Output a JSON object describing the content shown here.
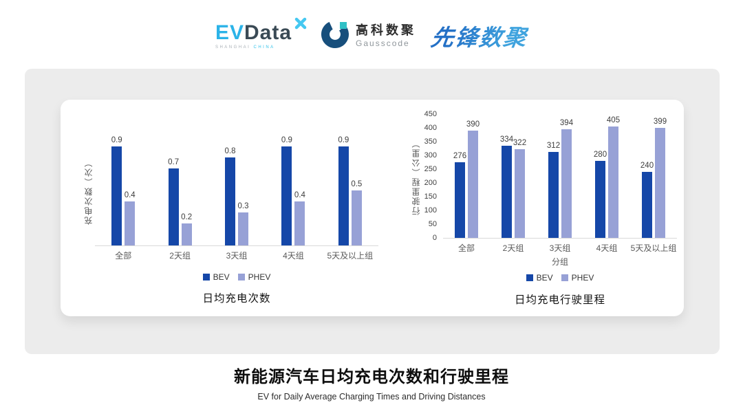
{
  "header": {
    "evdata": {
      "ev": "EV",
      "data": "Data",
      "sub_left": "SHANGHAI",
      "sub_right": "CHINA"
    },
    "gausscode": {
      "cn": "高科数聚",
      "en": "Gausscode"
    },
    "pioneer": {
      "text": "先锋数聚"
    }
  },
  "colors": {
    "bev": "#1547a8",
    "phev": "#97a1d6",
    "axis_line": "#d9d9d9",
    "panel_bg": "#ececec",
    "evdata_blue": "#2bb3e8",
    "evdata_dark": "#3a4a55",
    "gauss_navy": "#174f7c",
    "gauss_teal": "#2fc0c6",
    "pioneer_blue": "#2e86d1"
  },
  "chart_data": [
    {
      "type": "bar",
      "title": "日均充电次数",
      "categories": [
        "全部",
        "2天组",
        "3天组",
        "4天组",
        "5天及以上组"
      ],
      "series": [
        {
          "name": "BEV",
          "color": "#1547a8",
          "values": [
            0.9,
            0.7,
            0.8,
            0.9,
            0.9
          ]
        },
        {
          "name": "PHEV",
          "color": "#97a1d6",
          "values": [
            0.4,
            0.2,
            0.3,
            0.4,
            0.5
          ]
        }
      ],
      "xlabel": "",
      "ylabel": "充电次数（次）",
      "ylim": [
        0,
        1.0
      ],
      "y_ticks": [],
      "grid": false,
      "legend": [
        "BEV",
        "PHEV"
      ],
      "legend_position": "bottom",
      "data_labels": true
    },
    {
      "type": "bar",
      "title": "日均充电行驶里程",
      "categories": [
        "全部",
        "2天组",
        "3天组",
        "4天组",
        "5天及以上组"
      ],
      "series": [
        {
          "name": "BEV",
          "color": "#1547a8",
          "values": [
            276,
            334,
            312,
            280,
            240
          ]
        },
        {
          "name": "PHEV",
          "color": "#97a1d6",
          "values": [
            390,
            322,
            394,
            405,
            399
          ]
        }
      ],
      "xlabel": "分组",
      "ylabel": "行驶里程（公里）",
      "ylim": [
        0,
        450
      ],
      "y_ticks": [
        450,
        400,
        350,
        300,
        250,
        200,
        150,
        100,
        50,
        0
      ],
      "grid": false,
      "legend": [
        "BEV",
        "PHEV"
      ],
      "legend_position": "bottom",
      "data_labels": true
    }
  ],
  "footer": {
    "title": "新能源汽车日均充电次数和行驶里程",
    "subtitle": "EV for Daily Average Charging Times and Driving Distances"
  }
}
